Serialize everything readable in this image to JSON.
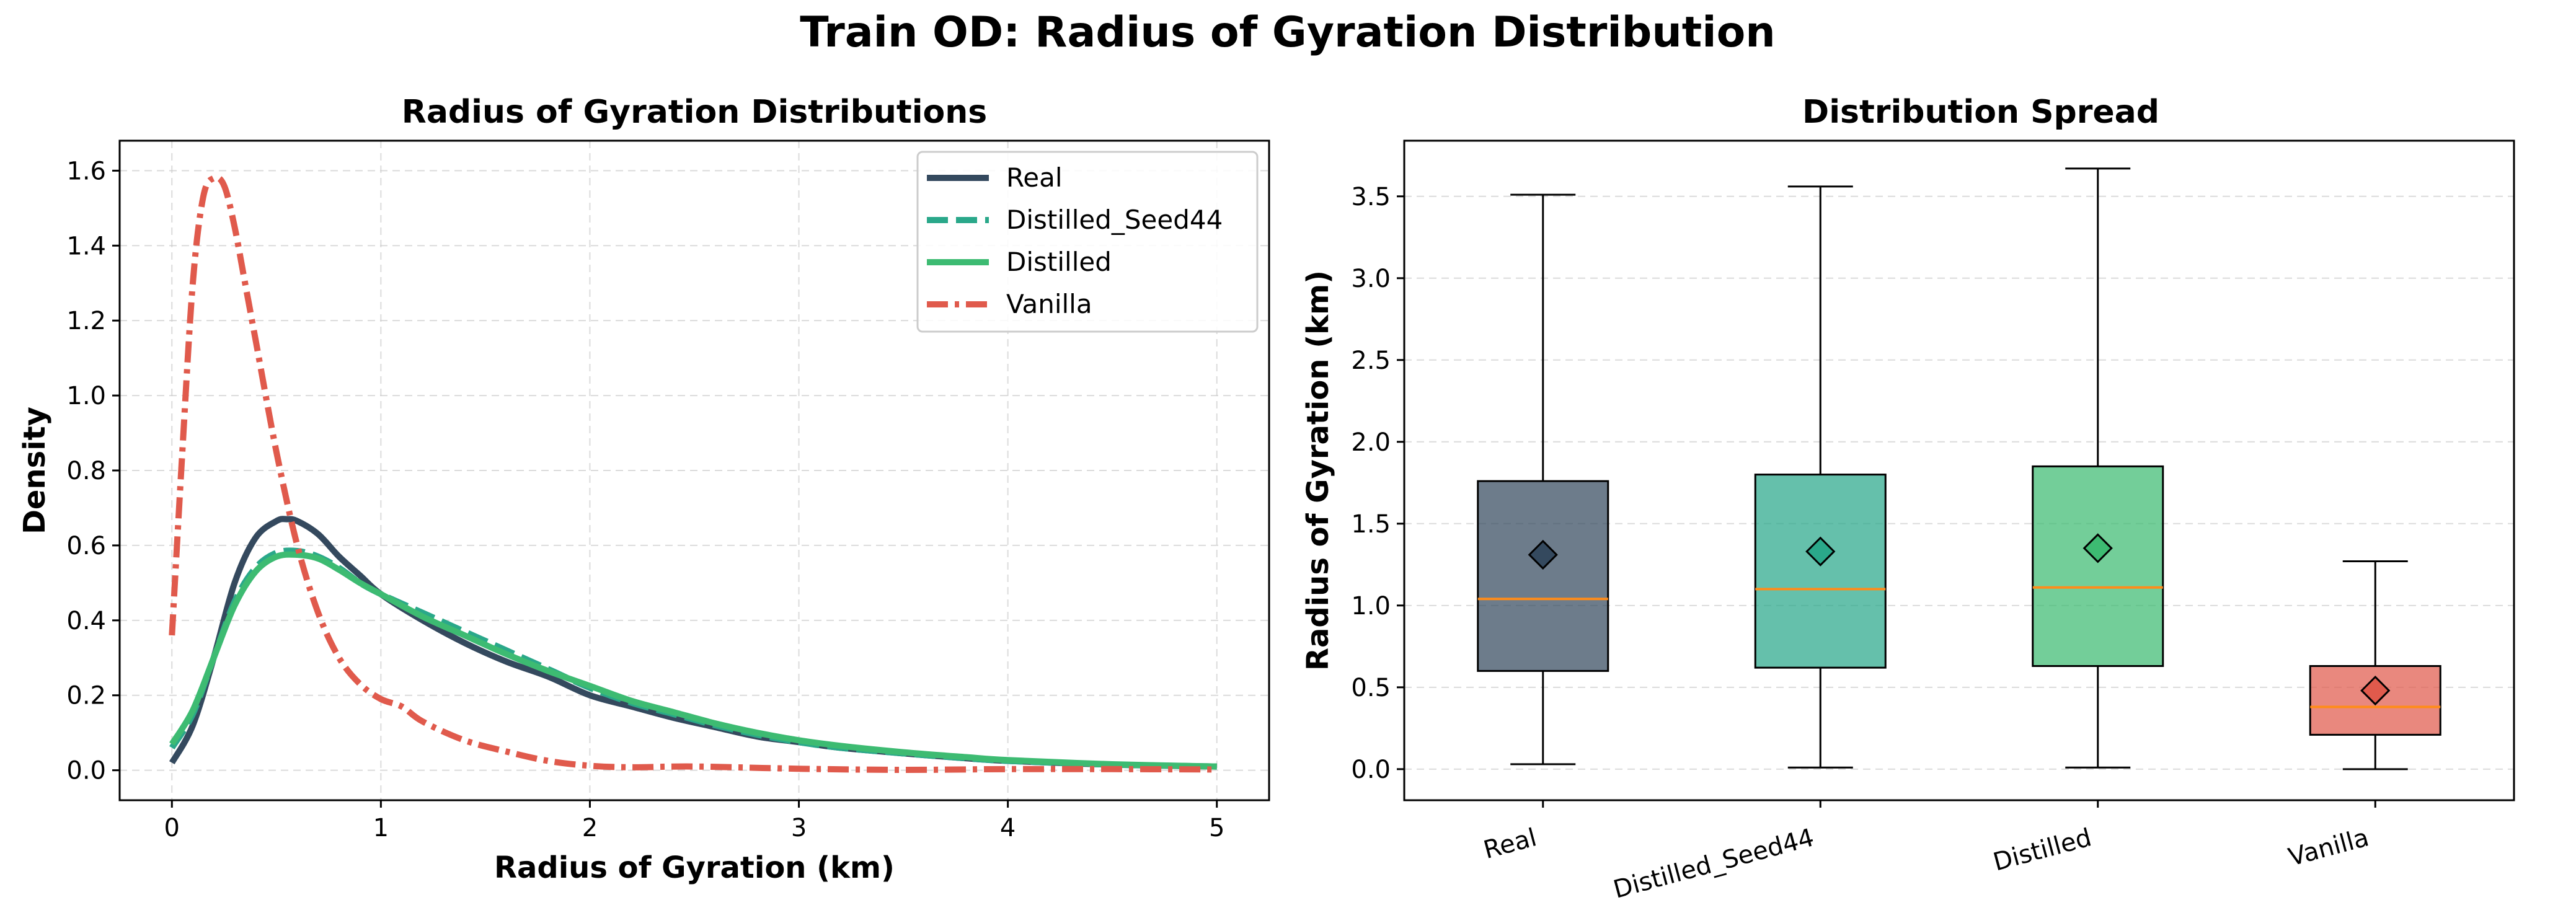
{
  "figure": {
    "title": "Train OD: Radius of Gyration Distribution"
  },
  "colors": {
    "real": "#34495e",
    "distilled_seed44": "#2aa88a",
    "distilled": "#3dbb72",
    "vanilla": "#e05a4c",
    "median": "#ff8c1a",
    "grid": "#cccccc",
    "axis": "#000000"
  },
  "chart_data": [
    {
      "type": "line",
      "title": "Radius of Gyration Distributions",
      "xlabel": "Radius of Gyration (km)",
      "ylabel": "Density",
      "xlim": [
        -0.25,
        5.25
      ],
      "ylim": [
        -0.08,
        1.68
      ],
      "xticks": [
        0,
        1,
        2,
        3,
        4,
        5
      ],
      "xtick_labels": [
        "0",
        "1",
        "2",
        "3",
        "4",
        "5"
      ],
      "yticks": [
        0.0,
        0.2,
        0.4,
        0.6,
        0.8,
        1.0,
        1.2,
        1.4,
        1.6
      ],
      "ytick_labels": [
        "0.0",
        "0.2",
        "0.4",
        "0.6",
        "0.8",
        "1.0",
        "1.2",
        "1.4",
        "1.6"
      ],
      "grid": true,
      "legend_position": "top-right",
      "series": [
        {
          "name": "Real",
          "style": "solid",
          "color_key": "real",
          "x": [
            0,
            0.1,
            0.2,
            0.3,
            0.4,
            0.5,
            0.55,
            0.6,
            0.7,
            0.8,
            0.9,
            1.0,
            1.2,
            1.4,
            1.6,
            1.8,
            2.0,
            2.2,
            2.4,
            2.6,
            2.8,
            3.0,
            3.2,
            3.5,
            3.8,
            4.0,
            4.5,
            5.0
          ],
          "y": [
            0.02,
            0.12,
            0.3,
            0.5,
            0.62,
            0.665,
            0.67,
            0.665,
            0.63,
            0.57,
            0.52,
            0.47,
            0.4,
            0.34,
            0.29,
            0.25,
            0.2,
            0.17,
            0.14,
            0.115,
            0.09,
            0.075,
            0.06,
            0.045,
            0.032,
            0.025,
            0.015,
            0.01
          ]
        },
        {
          "name": "Distilled_Seed44",
          "style": "dashed",
          "color_key": "distilled_seed44",
          "x": [
            0,
            0.1,
            0.2,
            0.3,
            0.4,
            0.5,
            0.6,
            0.7,
            0.8,
            0.9,
            1.0,
            1.2,
            1.4,
            1.6,
            1.8,
            2.0,
            2.2,
            2.4,
            2.6,
            2.8,
            3.0,
            3.2,
            3.5,
            3.8,
            4.0,
            4.5,
            5.0
          ],
          "y": [
            0.06,
            0.15,
            0.3,
            0.45,
            0.54,
            0.58,
            0.585,
            0.57,
            0.54,
            0.5,
            0.47,
            0.42,
            0.37,
            0.32,
            0.27,
            0.22,
            0.18,
            0.15,
            0.12,
            0.095,
            0.075,
            0.06,
            0.045,
            0.032,
            0.025,
            0.015,
            0.01
          ]
        },
        {
          "name": "Distilled",
          "style": "solid",
          "color_key": "distilled",
          "x": [
            0,
            0.1,
            0.2,
            0.3,
            0.4,
            0.5,
            0.6,
            0.7,
            0.8,
            0.9,
            1.0,
            1.2,
            1.4,
            1.6,
            1.8,
            2.0,
            2.2,
            2.4,
            2.6,
            2.8,
            3.0,
            3.2,
            3.5,
            3.8,
            4.0,
            4.5,
            5.0
          ],
          "y": [
            0.07,
            0.16,
            0.3,
            0.44,
            0.53,
            0.57,
            0.575,
            0.565,
            0.535,
            0.5,
            0.47,
            0.41,
            0.36,
            0.31,
            0.265,
            0.225,
            0.185,
            0.155,
            0.125,
            0.1,
            0.08,
            0.065,
            0.048,
            0.035,
            0.027,
            0.016,
            0.01
          ]
        },
        {
          "name": "Vanilla",
          "style": "dashdot",
          "color_key": "vanilla",
          "x": [
            0,
            0.05,
            0.1,
            0.15,
            0.2,
            0.25,
            0.3,
            0.35,
            0.4,
            0.5,
            0.6,
            0.7,
            0.8,
            0.9,
            1.0,
            1.1,
            1.2,
            1.4,
            1.6,
            1.8,
            2.0,
            2.2,
            2.5,
            3.0,
            3.5,
            4.0,
            4.5,
            5.0
          ],
          "y": [
            0.36,
            0.85,
            1.3,
            1.53,
            1.58,
            1.56,
            1.45,
            1.3,
            1.15,
            0.85,
            0.6,
            0.42,
            0.3,
            0.23,
            0.19,
            0.17,
            0.13,
            0.08,
            0.05,
            0.025,
            0.012,
            0.008,
            0.01,
            0.004,
            0.001,
            0.003,
            0.003,
            0.002
          ]
        }
      ]
    },
    {
      "type": "box",
      "title": "Distribution Spread",
      "xlabel": "",
      "ylabel": "Radius of Gyration (km)",
      "ylim": [
        -0.19,
        3.84
      ],
      "yticks": [
        0.0,
        0.5,
        1.0,
        1.5,
        2.0,
        2.5,
        3.0,
        3.5
      ],
      "ytick_labels": [
        "0.0",
        "0.5",
        "1.0",
        "1.5",
        "2.0",
        "2.5",
        "3.0",
        "3.5"
      ],
      "grid": true,
      "categories": [
        "Real",
        "Distilled_Seed44",
        "Distilled",
        "Vanilla"
      ],
      "boxes": [
        {
          "name": "Real",
          "color_key": "real",
          "whisker_low": 0.03,
          "q1": 0.6,
          "median": 1.04,
          "q3": 1.76,
          "whisker_high": 3.51,
          "mean": 1.31
        },
        {
          "name": "Distilled_Seed44",
          "color_key": "distilled_seed44",
          "whisker_low": 0.01,
          "q1": 0.62,
          "median": 1.1,
          "q3": 1.8,
          "whisker_high": 3.56,
          "mean": 1.33
        },
        {
          "name": "Distilled",
          "color_key": "distilled",
          "whisker_low": 0.01,
          "q1": 0.63,
          "median": 1.11,
          "q3": 1.85,
          "whisker_high": 3.67,
          "mean": 1.35
        },
        {
          "name": "Vanilla",
          "color_key": "vanilla",
          "whisker_low": 0.0,
          "q1": 0.21,
          "median": 0.38,
          "q3": 0.63,
          "whisker_high": 1.27,
          "mean": 0.48
        }
      ]
    }
  ]
}
